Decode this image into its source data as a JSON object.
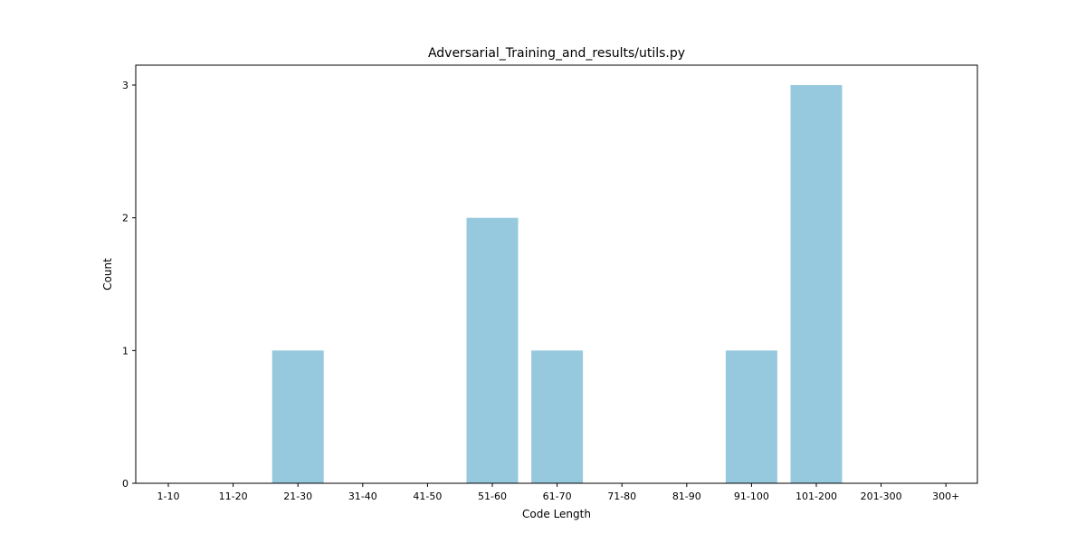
{
  "chart_data": {
    "type": "bar",
    "title": "Adversarial_Training_and_results/utils.py",
    "xlabel": "Code Length",
    "ylabel": "Count",
    "categories": [
      "1-10",
      "11-20",
      "21-30",
      "31-40",
      "41-50",
      "51-60",
      "61-70",
      "71-80",
      "81-90",
      "91-100",
      "101-200",
      "201-300",
      "300+"
    ],
    "values": [
      0,
      0,
      1,
      0,
      0,
      2,
      1,
      0,
      0,
      1,
      3,
      0,
      0
    ],
    "ylim": [
      0,
      3.15
    ],
    "yticks": [
      0,
      1,
      2,
      3
    ],
    "grid": false,
    "bar_color": "#96c9dd"
  }
}
